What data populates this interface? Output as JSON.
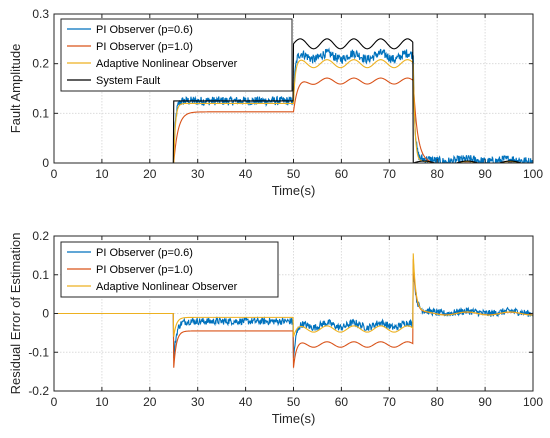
{
  "chart_data": [
    {
      "type": "line",
      "ylabel": "Fault Amplitude",
      "xlabel": "Time(s)",
      "xlim": [
        0,
        100
      ],
      "ylim": [
        0,
        0.3
      ],
      "xticks": [
        0,
        10,
        20,
        30,
        40,
        50,
        60,
        70,
        80,
        90,
        100
      ],
      "yticks": [
        0,
        0.1,
        0.2,
        0.3
      ],
      "ytick_labels": [
        "0",
        "0.1",
        "0.2",
        "0.3"
      ],
      "grid": true,
      "legend_position": "top-left",
      "series": [
        {
          "name": "PI Observer (p=0.6)",
          "color": "#0072BD",
          "levels": [
            {
              "t0": 0,
              "t1": 25,
              "v": 0
            },
            {
              "t0": 25,
              "t1": 50,
              "v": 0.125
            },
            {
              "t0": 50,
              "t1": 75,
              "v": 0.215
            },
            {
              "t0": 75,
              "t1": 100,
              "v": 0.005
            }
          ],
          "noise": 0.009,
          "oscillation": 0.006,
          "transient": "fast"
        },
        {
          "name": "PI Observer (p=1.0)",
          "color": "#D95319",
          "levels": [
            {
              "t0": 0,
              "t1": 25,
              "v": 0
            },
            {
              "t0": 25,
              "t1": 50,
              "v": 0.103
            },
            {
              "t0": 50,
              "t1": 75,
              "v": 0.165
            },
            {
              "t0": 75,
              "t1": 100,
              "v": -0.002
            }
          ],
          "noise": 0,
          "oscillation": 0.006,
          "transient": "slow"
        },
        {
          "name": "Adaptive Nonlinear Observer",
          "color": "#EDB120",
          "levels": [
            {
              "t0": 0,
              "t1": 25,
              "v": 0
            },
            {
              "t0": 25,
              "t1": 50,
              "v": 0.12
            },
            {
              "t0": 50,
              "t1": 75,
              "v": 0.2
            },
            {
              "t0": 75,
              "t1": 100,
              "v": 0
            }
          ],
          "noise": 0,
          "oscillation": 0.008,
          "transient": "fast"
        },
        {
          "name": "System Fault",
          "color": "#000000",
          "levels": [
            {
              "t0": 0,
              "t1": 25,
              "v": 0
            },
            {
              "t0": 25,
              "t1": 50,
              "v": 0.125
            },
            {
              "t0": 50,
              "t1": 75,
              "v": 0.24
            },
            {
              "t0": 75,
              "t1": 100,
              "v": 0
            }
          ],
          "noise": 0,
          "oscillation": 0.01,
          "transient": "none"
        }
      ]
    },
    {
      "type": "line",
      "ylabel": "Residual Error of Estimation",
      "xlabel": "Time(s)",
      "xlim": [
        0,
        100
      ],
      "ylim": [
        -0.2,
        0.2
      ],
      "xticks": [
        0,
        10,
        20,
        30,
        40,
        50,
        60,
        70,
        80,
        90,
        100
      ],
      "yticks": [
        -0.2,
        -0.1,
        0,
        0.1,
        0.2
      ],
      "ytick_labels": [
        "-0.2",
        "-0.1",
        "0",
        "0.1",
        "0.2"
      ],
      "grid": true,
      "legend_position": "top-left",
      "series": [
        {
          "name": "PI Observer (p=0.6)",
          "color": "#0072BD",
          "levels": [
            {
              "t0": 0,
              "t1": 25,
              "v": 0
            },
            {
              "t0": 25,
              "t1": 50,
              "v": -0.02
            },
            {
              "t0": 50,
              "t1": 75,
              "v": -0.03
            },
            {
              "t0": 75,
              "t1": 100,
              "v": 0.003
            }
          ],
          "spikes": [
            -0.12,
            -0.12,
            0.13
          ],
          "noise": 0.009,
          "oscillation": 0.006
        },
        {
          "name": "PI Observer (p=1.0)",
          "color": "#D95319",
          "levels": [
            {
              "t0": 0,
              "t1": 25,
              "v": 0
            },
            {
              "t0": 25,
              "t1": 50,
              "v": -0.045
            },
            {
              "t0": 50,
              "t1": 75,
              "v": -0.08
            },
            {
              "t0": 75,
              "t1": 100,
              "v": 0
            }
          ],
          "spikes": [
            -0.14,
            -0.14,
            0.14
          ],
          "noise": 0,
          "oscillation": 0.007
        },
        {
          "name": "Adaptive Nonlinear Observer",
          "color": "#EDB120",
          "levels": [
            {
              "t0": 0,
              "t1": 25,
              "v": 0
            },
            {
              "t0": 25,
              "t1": 50,
              "v": -0.01
            },
            {
              "t0": 50,
              "t1": 75,
              "v": -0.04
            },
            {
              "t0": 75,
              "t1": 100,
              "v": 0
            }
          ],
          "spikes": [
            -0.06,
            -0.06,
            0.155
          ],
          "noise": 0,
          "oscillation": 0.008
        }
      ]
    }
  ]
}
